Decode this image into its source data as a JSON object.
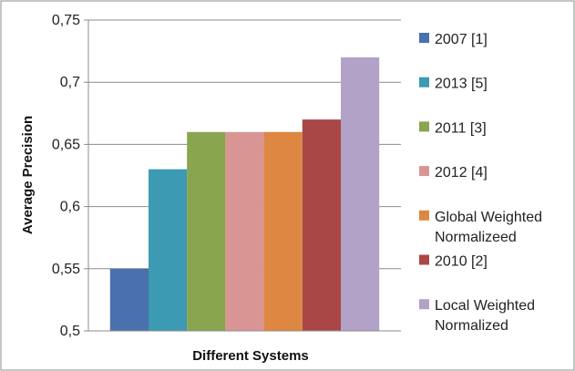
{
  "chart_data": {
    "type": "bar",
    "xlabel": "Different Systems",
    "ylabel": "Average Precision",
    "ylim": [
      0.5,
      0.75
    ],
    "yticks": [
      "0,5",
      "0,55",
      "0,6",
      "0,65",
      "0,7",
      "0,75"
    ],
    "grid": true,
    "legend_position": "right",
    "series": [
      {
        "name": "2007 [1]",
        "value": 0.55,
        "color": "#4a71ad"
      },
      {
        "name": "2013 [5]",
        "value": 0.63,
        "color": "#3c9ab2"
      },
      {
        "name": "2011 [3]",
        "value": 0.66,
        "color": "#89a54e"
      },
      {
        "name": "2012 [4]",
        "value": 0.66,
        "color": "#d99594"
      },
      {
        "name": "Global Weighted Normalizeed",
        "value": 0.66,
        "color": "#dd8742"
      },
      {
        "name": "2010 [2]",
        "value": 0.67,
        "color": "#a94746"
      },
      {
        "name": "Local Weighted Normalized",
        "value": 0.72,
        "color": "#b3a2c7"
      }
    ],
    "legend": [
      {
        "lines": [
          "2007 [1]"
        ]
      },
      {
        "lines": [
          "2013 [5]"
        ]
      },
      {
        "lines": [
          "2011 [3]"
        ]
      },
      {
        "lines": [
          "2012 [4]"
        ]
      },
      {
        "lines": [
          "Global Weighted",
          "Normalizeed"
        ]
      },
      {
        "lines": [
          "2010 [2]"
        ]
      },
      {
        "lines": [
          "Local Weighted",
          "Normalized"
        ]
      }
    ]
  }
}
